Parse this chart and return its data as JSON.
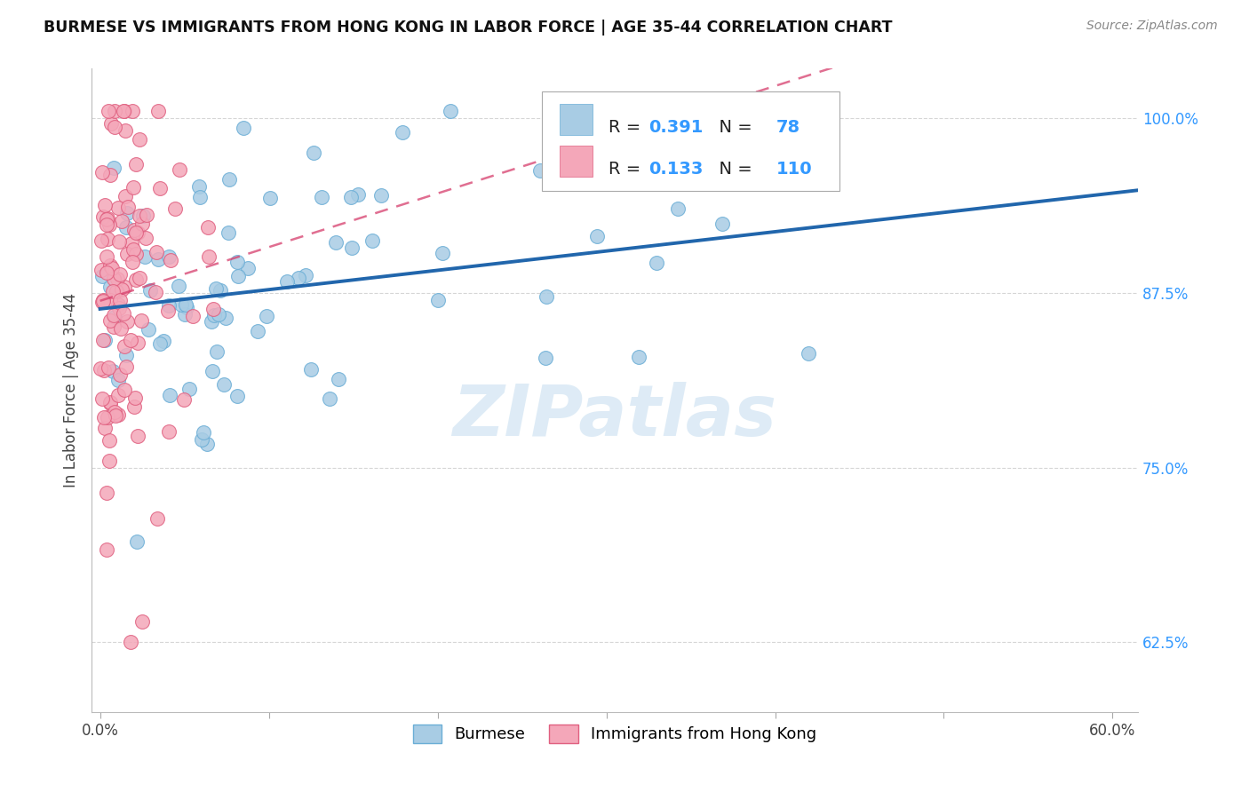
{
  "title": "BURMESE VS IMMIGRANTS FROM HONG KONG IN LABOR FORCE | AGE 35-44 CORRELATION CHART",
  "source": "Source: ZipAtlas.com",
  "ylabel": "In Labor Force | Age 35-44",
  "xlim": [
    -0.005,
    0.615
  ],
  "ylim": [
    0.575,
    1.035
  ],
  "xticks": [
    0.0,
    0.1,
    0.2,
    0.3,
    0.4,
    0.5,
    0.6
  ],
  "xticklabels": [
    "0.0%",
    "",
    "",
    "",
    "",
    "",
    "60.0%"
  ],
  "yticks": [
    0.625,
    0.75,
    0.875,
    1.0
  ],
  "yticklabels": [
    "62.5%",
    "75.0%",
    "87.5%",
    "100.0%"
  ],
  "blue_R": 0.391,
  "blue_N": 78,
  "pink_R": 0.133,
  "pink_N": 110,
  "blue_color": "#a8cce4",
  "pink_color": "#f4a7b9",
  "blue_edge_color": "#6baed6",
  "pink_edge_color": "#e06080",
  "blue_line_color": "#2166ac",
  "pink_line_color": "#d63e6c",
  "watermark_color": "#c8dff0",
  "grid_color": "#cccccc",
  "legend_R_N_color": "#3399ff",
  "legend_text_color": "#222222"
}
